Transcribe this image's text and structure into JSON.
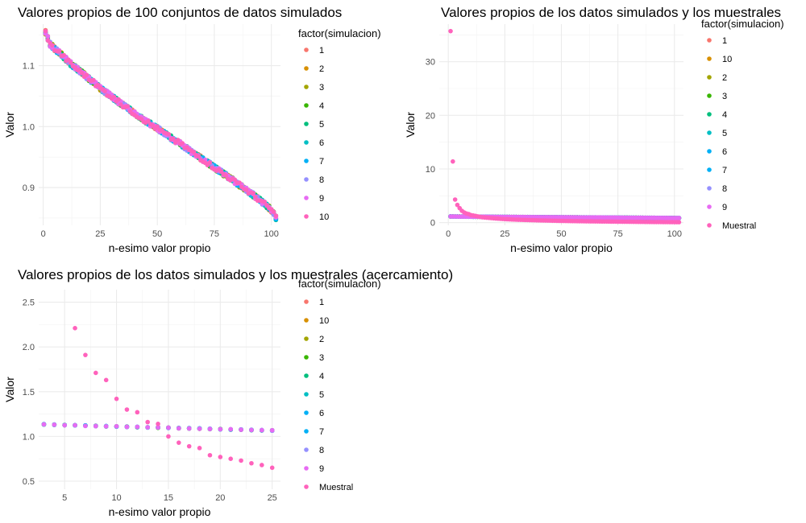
{
  "chart_data": [
    {
      "type": "scatter",
      "title": "Valores propios de 100 conjuntos de datos simulados",
      "xlabel": "n-esimo valor propio",
      "ylabel": "Valor",
      "xlim": [
        -2,
        104
      ],
      "ylim": [
        0.838,
        1.168
      ],
      "xticks": [
        0,
        25,
        50,
        75,
        100
      ],
      "yticks": [
        0.9,
        1.0,
        1.1
      ],
      "grid": true,
      "legend_title": "factor(simulacion)",
      "legend_position": "right",
      "series": [
        {
          "name": "1",
          "color": "#F8766D"
        },
        {
          "name": "2",
          "color": "#D89000"
        },
        {
          "name": "3",
          "color": "#A3A500"
        },
        {
          "name": "4",
          "color": "#39B600"
        },
        {
          "name": "5",
          "color": "#00BF7D"
        },
        {
          "name": "6",
          "color": "#00BFC4"
        },
        {
          "name": "7",
          "color": "#00B0F6"
        },
        {
          "name": "8",
          "color": "#9590FF"
        },
        {
          "name": "9",
          "color": "#E76BF3"
        },
        {
          "name": "10",
          "color": "#FF62BC"
        }
      ],
      "x": [
        1,
        2,
        3,
        5,
        8,
        12,
        15,
        20,
        25,
        30,
        35,
        40,
        45,
        50,
        55,
        60,
        65,
        70,
        75,
        80,
        85,
        90,
        93,
        96,
        98,
        100,
        101,
        102
      ],
      "y": [
        1.155,
        1.145,
        1.135,
        1.128,
        1.118,
        1.103,
        1.094,
        1.079,
        1.063,
        1.049,
        1.035,
        1.022,
        1.009,
        0.997,
        0.984,
        0.972,
        0.959,
        0.946,
        0.933,
        0.92,
        0.907,
        0.893,
        0.885,
        0.876,
        0.87,
        0.863,
        0.858,
        0.85
      ]
    },
    {
      "type": "scatter",
      "title": "Valores propios de los datos simulados y los muestrales",
      "xlabel": "n-esimo valor propio",
      "ylabel": "Valor",
      "xlim": [
        -4,
        104
      ],
      "ylim": [
        -0.5,
        37
      ],
      "xticks": [
        0,
        25,
        50,
        75,
        100
      ],
      "yticks": [
        0,
        10,
        20,
        30
      ],
      "grid": true,
      "legend_title": "factor(simulacion)",
      "legend_position": "right",
      "series": [
        {
          "name": "1",
          "color": "#F8766D"
        },
        {
          "name": "10",
          "color": "#D89000"
        },
        {
          "name": "2",
          "color": "#A3A500"
        },
        {
          "name": "3",
          "color": "#39B600"
        },
        {
          "name": "4",
          "color": "#00BF7D"
        },
        {
          "name": "5",
          "color": "#00BFC4"
        },
        {
          "name": "6",
          "color": "#00B0F6"
        },
        {
          "name": "7",
          "color": "#00B0F6"
        },
        {
          "name": "8",
          "color": "#9590FF"
        },
        {
          "name": "9",
          "color": "#E76BF3"
        },
        {
          "name": "Muestral",
          "color": "#FF62BC"
        }
      ],
      "simulated_x": [
        1,
        5,
        10,
        20,
        30,
        40,
        50,
        60,
        70,
        80,
        90,
        100,
        102
      ],
      "simulated_y": [
        1.15,
        1.13,
        1.11,
        1.08,
        1.05,
        1.02,
        1.0,
        0.97,
        0.95,
        0.92,
        0.89,
        0.86,
        0.85
      ],
      "muestral_x": [
        1,
        2,
        3,
        4,
        5,
        6,
        7,
        8,
        9,
        10,
        12,
        15,
        20,
        25,
        30,
        40,
        50,
        60,
        70,
        80,
        90,
        100,
        102
      ],
      "muestral_y": [
        35.7,
        11.4,
        4.3,
        3.3,
        2.7,
        2.2,
        1.9,
        1.7,
        1.6,
        1.4,
        1.26,
        0.99,
        0.8,
        0.65,
        0.55,
        0.42,
        0.32,
        0.25,
        0.2,
        0.16,
        0.12,
        0.09,
        0.08
      ]
    },
    {
      "type": "scatter",
      "title": "Valores propios de los datos simulados y los muestrales (acercamiento)",
      "xlabel": "n-esimo valor propio",
      "ylabel": "Valor",
      "xlim": [
        2.5,
        25.8
      ],
      "ylim": [
        0.41,
        2.64
      ],
      "xticks": [
        5,
        10,
        15,
        20,
        25
      ],
      "yticks": [
        0.5,
        1.0,
        1.5,
        2.0,
        2.5
      ],
      "grid": true,
      "legend_title": "factor(simulacion)",
      "legend_position": "right",
      "series": [
        {
          "name": "1",
          "color": "#F8766D"
        },
        {
          "name": "10",
          "color": "#D89000"
        },
        {
          "name": "2",
          "color": "#A3A500"
        },
        {
          "name": "3",
          "color": "#39B600"
        },
        {
          "name": "4",
          "color": "#00BF7D"
        },
        {
          "name": "5",
          "color": "#00BFC4"
        },
        {
          "name": "6",
          "color": "#00B0F6"
        },
        {
          "name": "7",
          "color": "#00B0F6"
        },
        {
          "name": "8",
          "color": "#9590FF"
        },
        {
          "name": "9",
          "color": "#E76BF3"
        },
        {
          "name": "Muestral",
          "color": "#FF62BC"
        }
      ],
      "simulated_x": [
        3,
        4,
        5,
        6,
        7,
        8,
        9,
        10,
        11,
        12,
        13,
        14,
        15,
        16,
        17,
        18,
        19,
        20,
        21,
        22,
        23,
        24,
        25
      ],
      "simulated_y": [
        1.135,
        1.13,
        1.127,
        1.123,
        1.12,
        1.117,
        1.114,
        1.111,
        1.108,
        1.105,
        1.102,
        1.099,
        1.096,
        1.093,
        1.09,
        1.087,
        1.084,
        1.081,
        1.078,
        1.075,
        1.072,
        1.069,
        1.066
      ],
      "muestral_x": [
        6,
        7,
        8,
        9,
        10,
        11,
        12,
        13,
        14,
        15,
        16,
        17,
        18,
        19,
        20,
        21,
        22,
        23,
        24,
        25
      ],
      "muestral_y": [
        2.21,
        1.91,
        1.71,
        1.63,
        1.42,
        1.3,
        1.27,
        1.16,
        1.14,
        1.0,
        0.93,
        0.89,
        0.87,
        0.79,
        0.77,
        0.75,
        0.73,
        0.7,
        0.68,
        0.65
      ]
    }
  ]
}
